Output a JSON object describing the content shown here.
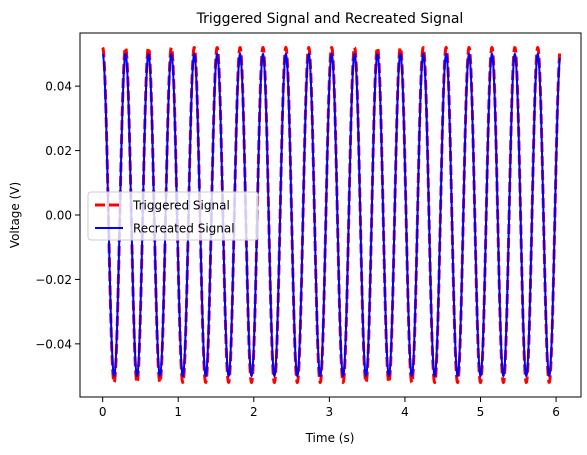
{
  "chart_data": {
    "type": "line",
    "title": "Triggered Signal and Recreated Signal",
    "xlabel": "Time (s)",
    "ylabel": "Voltage (V)",
    "xlim": [
      -0.3,
      6.33
    ],
    "ylim": [
      -0.0565,
      0.0565
    ],
    "xticks": [
      0,
      1,
      2,
      3,
      4,
      5,
      6
    ],
    "yticks": [
      -0.04,
      -0.02,
      0.0,
      0.02,
      0.04
    ],
    "xtick_labels": [
      "0",
      "1",
      "2",
      "3",
      "4",
      "5",
      "6"
    ],
    "ytick_labels": [
      "−0.04",
      "−0.02",
      "0.00",
      "0.02",
      "0.04"
    ],
    "grid": false,
    "legend": {
      "position": "center-left"
    },
    "x_range": [
      0,
      6.05
    ],
    "frequency_hz": 3.3,
    "series": [
      {
        "name": "Triggered Signal",
        "color": "#ff0000",
        "style": "dashed",
        "amplitude": 0.052
      },
      {
        "name": "Recreated Signal",
        "color": "#0000ff",
        "style": "solid",
        "amplitude": 0.05
      }
    ]
  }
}
